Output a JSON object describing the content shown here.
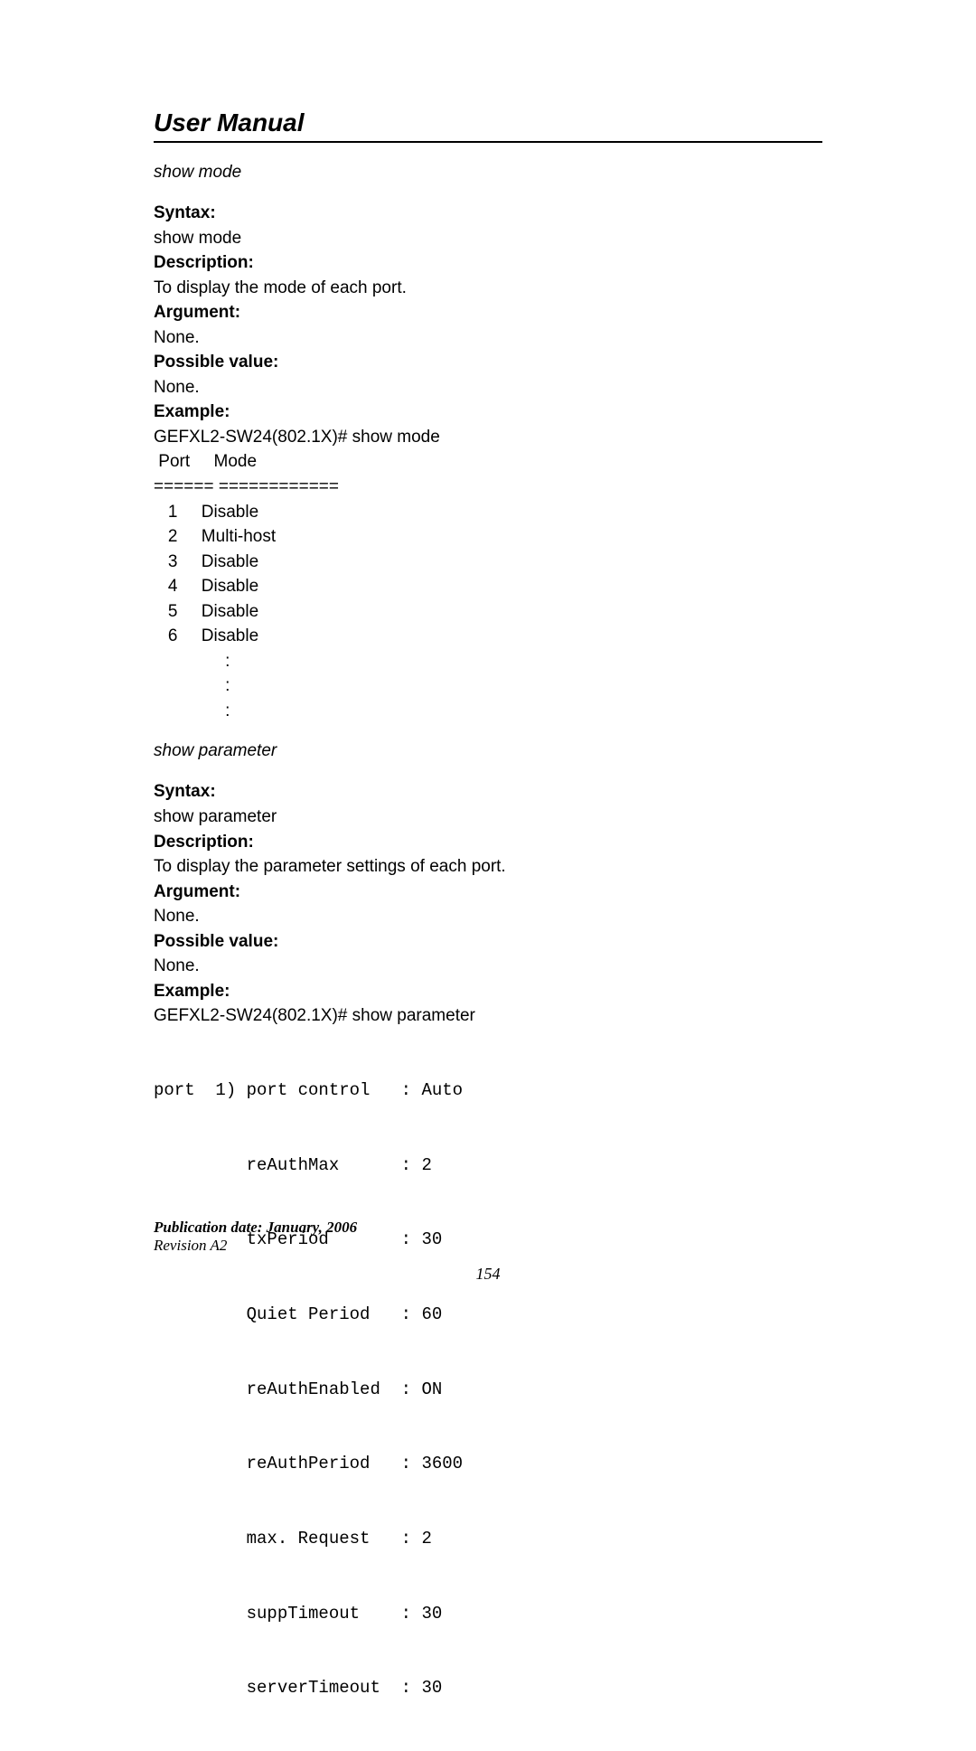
{
  "header": {
    "title": "User Manual"
  },
  "section1": {
    "name": "show mode",
    "syntax_label": "Syntax",
    "syntax_value": "show mode",
    "description_label": "Description",
    "description_value": "To display the mode of each port.",
    "argument_label": "Argument",
    "argument_value": "None.",
    "possible_label": "Possible value:",
    "possible_value": "None.",
    "example_label": "Example:",
    "example_cmd": "GEFXL2-SW24(802.1X)# show mode",
    "table_header": " Port     Mode",
    "table_sep": "====== ============",
    "rows": [
      "   1     Disable",
      "   2     Multi-host",
      "   3     Disable",
      "   4     Disable",
      "   5     Disable",
      "   6     Disable",
      "               :",
      "               :",
      "               :"
    ]
  },
  "section2": {
    "name": "show parameter",
    "syntax_label": "Syntax",
    "syntax_value": "show parameter",
    "description_label": "Description",
    "description_value": "To display the parameter settings of each port.",
    "argument_label": "Argument",
    "argument_value": "None.",
    "possible_label": "Possible value:",
    "possible_value": "None.",
    "example_label": "Example:",
    "example_cmd": "GEFXL2-SW24(802.1X)# show parameter",
    "mono_lines": [
      "port  1) port control   : Auto",
      "         reAuthMax      : 2",
      "         txPeriod       : 30",
      "         Quiet Period   : 60",
      "         reAuthEnabled  : ON",
      "         reAuthPeriod   : 3600",
      "         max. Request   : 2",
      "         suppTimeout    : 30",
      "         serverTimeout  : 30"
    ]
  },
  "footer": {
    "pub": "Publication date: January, 2006",
    "rev": "Revision A2",
    "page_num": "154"
  }
}
